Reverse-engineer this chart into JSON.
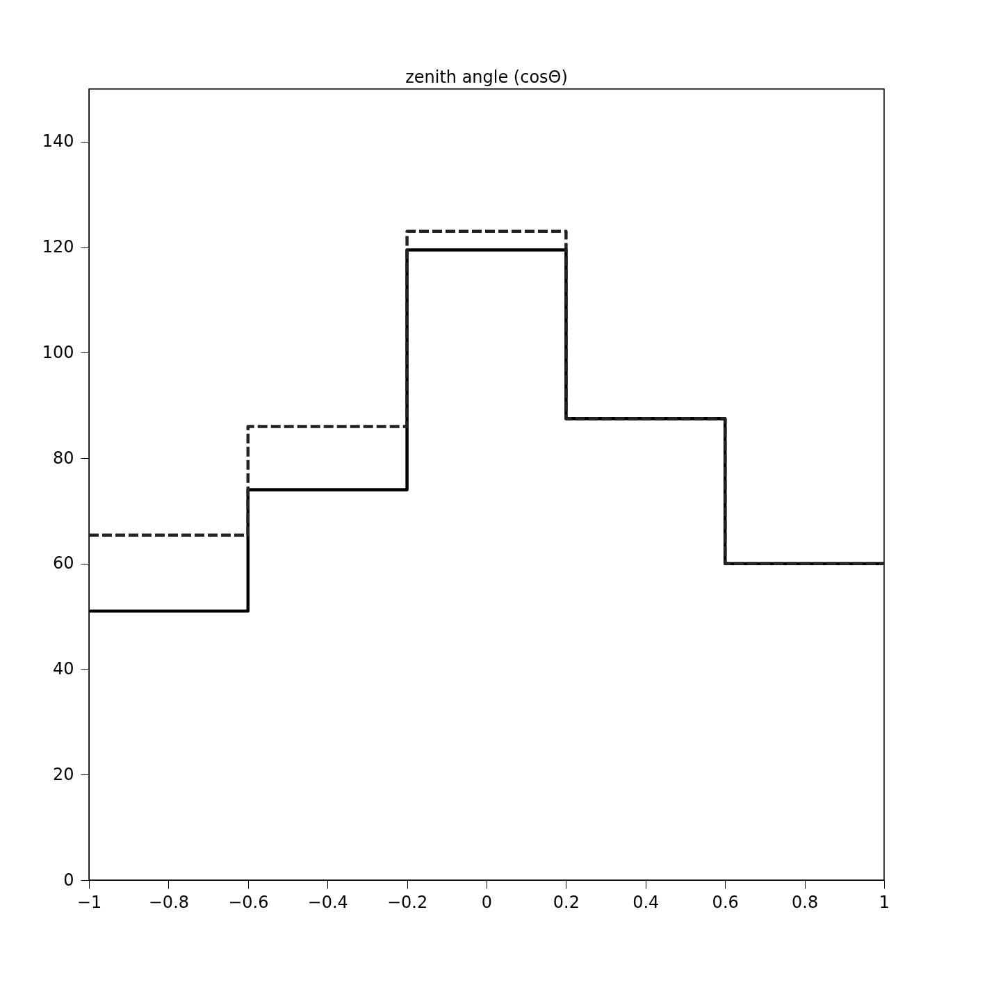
{
  "chart_data": {
    "type": "histogram",
    "title": "zenith angle (cosΘ)",
    "bins": [
      -1,
      -0.6,
      -0.2,
      0.2,
      0.6,
      1
    ],
    "series": [
      {
        "color": "#000000",
        "line_style": "solid",
        "values": [
          51,
          74,
          119.5,
          87.5,
          60
        ]
      },
      {
        "color": "#222222",
        "line_style": "dashed",
        "values": [
          65.4,
          86,
          123,
          87.5,
          60
        ]
      }
    ],
    "xlim": [
      -1,
      1
    ],
    "xticks": [
      -1,
      -0.8,
      -0.6,
      -0.4,
      -0.2,
      0,
      0.2,
      0.4,
      0.6,
      0.8,
      1
    ],
    "ylim": [
      0,
      150
    ],
    "yticks": [
      0,
      20,
      40,
      60,
      80,
      100,
      120,
      140
    ],
    "grid": false
  }
}
